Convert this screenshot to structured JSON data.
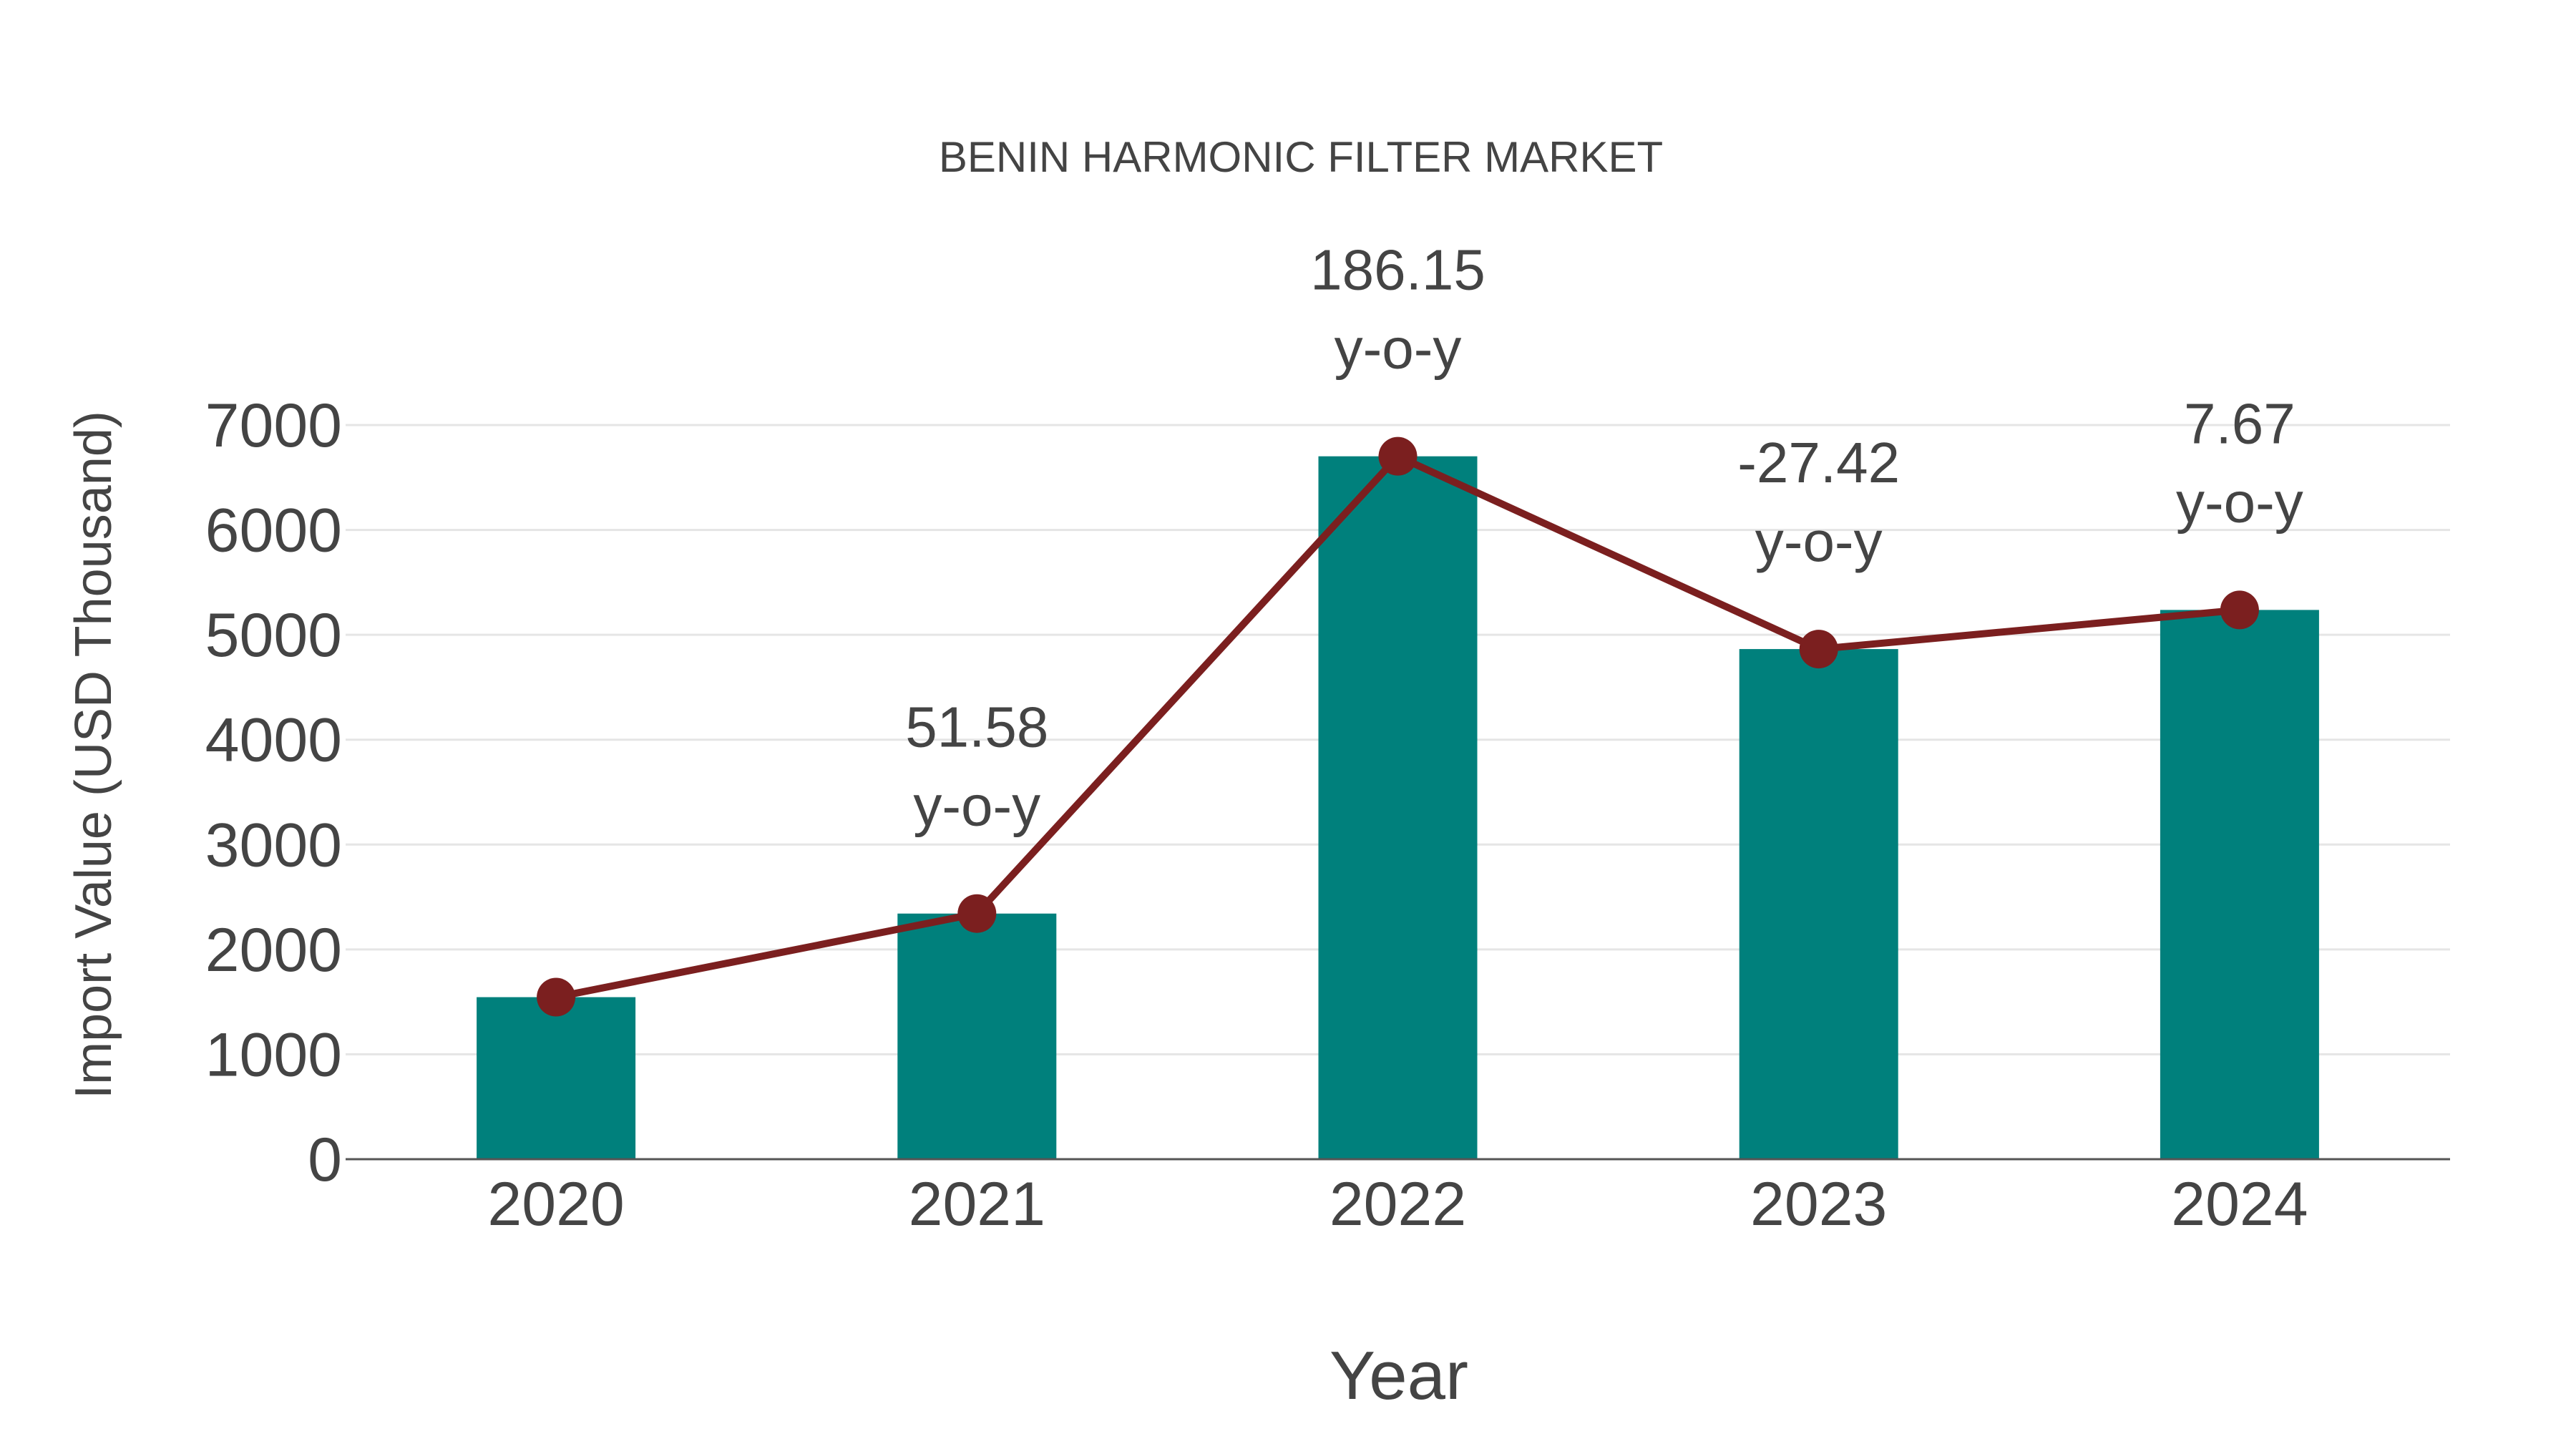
{
  "chart_data": {
    "type": "bar",
    "title": "BENIN HARMONIC FILTER MARKET",
    "xlabel": "Year",
    "ylabel": "Import Value (USD Thousand)",
    "categories": [
      "2020",
      "2021",
      "2022",
      "2023",
      "2024"
    ],
    "series": [
      {
        "name": "Import Value",
        "type": "bar",
        "color": "#00807c",
        "values": [
          1545,
          2342,
          6702,
          4864,
          5237
        ]
      },
      {
        "name": "Import Value trend",
        "type": "line",
        "color": "#7b1f1f",
        "values": [
          1545,
          2342,
          6702,
          4864,
          5237
        ]
      }
    ],
    "annotations": [
      {
        "x": "2021",
        "value": "51.58",
        "suffix": "y-o-y"
      },
      {
        "x": "2022",
        "value": "186.15",
        "suffix": "y-o-y"
      },
      {
        "x": "2023",
        "value": "-27.42",
        "suffix": "y-o-y"
      },
      {
        "x": "2024",
        "value": "7.67",
        "suffix": "y-o-y"
      }
    ],
    "yticks": [
      "0",
      "1000",
      "2000",
      "3000",
      "4000",
      "5000",
      "6000",
      "7000"
    ],
    "ylim": [
      0,
      7000
    ],
    "grid": true,
    "legend": "none"
  }
}
